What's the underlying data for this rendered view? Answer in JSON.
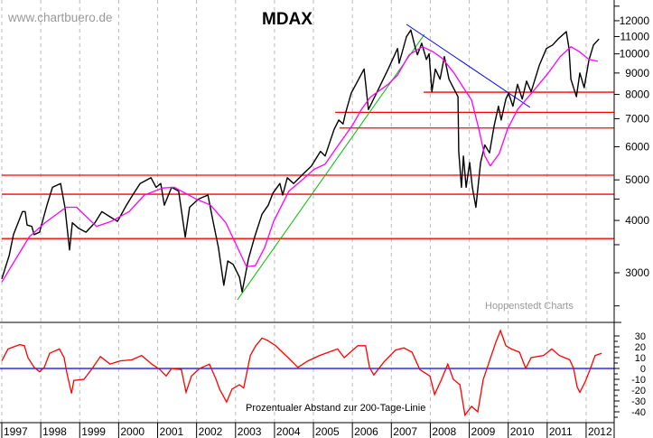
{
  "chart_data": [
    {
      "type": "line",
      "title": "MDAX",
      "watermark": "www.chartbuero.de",
      "source": "Hoppenstedt Charts",
      "y_scale": "log",
      "ylim": [
        2500,
        13000
      ],
      "xlim": [
        1997,
        2012.7
      ],
      "grid": "vertical dashed, yearly",
      "y_ticks": [
        12000,
        11000,
        10000,
        9000,
        8000,
        7000,
        6000,
        5000,
        4000,
        3000
      ],
      "x_ticks": [
        "1997",
        "1998",
        "1999",
        "2000",
        "2001",
        "2002",
        "2003",
        "2004",
        "2005",
        "2006",
        "2007",
        "2008",
        "2009",
        "2010",
        "2011",
        "2012"
      ],
      "colors": {
        "price": "#000000",
        "ma200": "#ff00ff",
        "support": "#ff0000",
        "uptrend": "#00c000",
        "downtrend": "#0000ff"
      },
      "series": [
        {
          "key": "price",
          "points": [
            [
              1997.0,
              2900
            ],
            [
              1997.19,
              3300
            ],
            [
              1997.3,
              3700
            ],
            [
              1997.53,
              4200
            ],
            [
              1997.6,
              4200
            ],
            [
              1997.65,
              3900
            ],
            [
              1997.77,
              3870
            ],
            [
              1997.83,
              3700
            ],
            [
              1997.97,
              3750
            ],
            [
              1998.16,
              4350
            ],
            [
              1998.3,
              4800
            ],
            [
              1998.51,
              4900
            ],
            [
              1998.62,
              4300
            ],
            [
              1998.74,
              3400
            ],
            [
              1998.81,
              3950
            ],
            [
              1998.97,
              3830
            ],
            [
              1999.16,
              3750
            ],
            [
              1999.39,
              3950
            ],
            [
              1999.57,
              4200
            ],
            [
              1999.78,
              4080
            ],
            [
              1999.97,
              3980
            ],
            [
              2000.2,
              4350
            ],
            [
              2000.36,
              4600
            ],
            [
              2000.55,
              4900
            ],
            [
              2000.83,
              5060
            ],
            [
              2000.96,
              4800
            ],
            [
              2001.08,
              4900
            ],
            [
              2001.17,
              4350
            ],
            [
              2001.36,
              4800
            ],
            [
              2001.54,
              4700
            ],
            [
              2001.71,
              3650
            ],
            [
              2001.82,
              4300
            ],
            [
              2002.05,
              4500
            ],
            [
              2002.29,
              4600
            ],
            [
              2002.43,
              3950
            ],
            [
              2002.56,
              3450
            ],
            [
              2002.7,
              2800
            ],
            [
              2002.8,
              3200
            ],
            [
              2002.94,
              3140
            ],
            [
              2003.1,
              2930
            ],
            [
              2003.17,
              2700
            ],
            [
              2003.33,
              3230
            ],
            [
              2003.49,
              3650
            ],
            [
              2003.68,
              4140
            ],
            [
              2003.84,
              4350
            ],
            [
              2003.96,
              4650
            ],
            [
              2004.14,
              4900
            ],
            [
              2004.21,
              4600
            ],
            [
              2004.33,
              5060
            ],
            [
              2004.49,
              4900
            ],
            [
              2004.72,
              5150
            ],
            [
              2004.95,
              5400
            ],
            [
              2005.18,
              5850
            ],
            [
              2005.3,
              5700
            ],
            [
              2005.53,
              6600
            ],
            [
              2005.65,
              6950
            ],
            [
              2005.76,
              6800
            ],
            [
              2005.83,
              7250
            ],
            [
              2005.97,
              8060
            ],
            [
              2006.3,
              9200
            ],
            [
              2006.41,
              7360
            ],
            [
              2006.62,
              8060
            ],
            [
              2006.92,
              9200
            ],
            [
              2007.16,
              10300
            ],
            [
              2007.2,
              9500
            ],
            [
              2007.39,
              11000
            ],
            [
              2007.5,
              11400
            ],
            [
              2007.62,
              10300
            ],
            [
              2007.67,
              9950
            ],
            [
              2007.78,
              10600
            ],
            [
              2007.9,
              9700
            ],
            [
              2007.97,
              10000
            ],
            [
              2008.04,
              8120
            ],
            [
              2008.13,
              9200
            ],
            [
              2008.25,
              8700
            ],
            [
              2008.36,
              9850
            ],
            [
              2008.48,
              8700
            ],
            [
              2008.59,
              8300
            ],
            [
              2008.71,
              7900
            ],
            [
              2008.73,
              5850
            ],
            [
              2008.8,
              4800
            ],
            [
              2008.85,
              5700
            ],
            [
              2008.92,
              4800
            ],
            [
              2009.01,
              5500
            ],
            [
              2009.08,
              4800
            ],
            [
              2009.17,
              4300
            ],
            [
              2009.29,
              5500
            ],
            [
              2009.4,
              6060
            ],
            [
              2009.52,
              5800
            ],
            [
              2009.64,
              6750
            ],
            [
              2009.75,
              7500
            ],
            [
              2009.82,
              6950
            ],
            [
              2009.94,
              7800
            ],
            [
              2010.01,
              8060
            ],
            [
              2010.12,
              7500
            ],
            [
              2010.24,
              8460
            ],
            [
              2010.36,
              7800
            ],
            [
              2010.47,
              8610
            ],
            [
              2010.59,
              8120
            ],
            [
              2010.8,
              9400
            ],
            [
              2010.98,
              10300
            ],
            [
              2011.14,
              10500
            ],
            [
              2011.28,
              10850
            ],
            [
              2011.49,
              11300
            ],
            [
              2011.56,
              10300
            ],
            [
              2011.61,
              8700
            ],
            [
              2011.75,
              7900
            ],
            [
              2011.84,
              9000
            ],
            [
              2011.95,
              8300
            ],
            [
              2012.07,
              9650
            ],
            [
              2012.19,
              10500
            ],
            [
              2012.33,
              10850
            ]
          ]
        },
        {
          "key": "ma200",
          "points": [
            [
              1997.0,
              2850
            ],
            [
              1997.7,
              3650
            ],
            [
              1998.11,
              3950
            ],
            [
              1998.65,
              4300
            ],
            [
              1998.92,
              4300
            ],
            [
              1999.43,
              3870
            ],
            [
              1999.81,
              3980
            ],
            [
              2000.27,
              4200
            ],
            [
              2000.66,
              4600
            ],
            [
              2001.13,
              4780
            ],
            [
              2001.43,
              4800
            ],
            [
              2001.99,
              4500
            ],
            [
              2002.36,
              4350
            ],
            [
              2002.75,
              3950
            ],
            [
              2003.05,
              3450
            ],
            [
              2003.28,
              3100
            ],
            [
              2003.51,
              3120
            ],
            [
              2003.75,
              3450
            ],
            [
              2003.98,
              3980
            ],
            [
              2004.37,
              4700
            ],
            [
              2004.67,
              4960
            ],
            [
              2005.02,
              5300
            ],
            [
              2005.3,
              5450
            ],
            [
              2005.6,
              5980
            ],
            [
              2006.0,
              6750
            ],
            [
              2006.23,
              7360
            ],
            [
              2006.46,
              7880
            ],
            [
              2006.92,
              8460
            ],
            [
              2007.16,
              8900
            ],
            [
              2007.46,
              9950
            ],
            [
              2007.8,
              10400
            ],
            [
              2008.08,
              10100
            ],
            [
              2008.31,
              9750
            ],
            [
              2008.61,
              9000
            ],
            [
              2008.85,
              8300
            ],
            [
              2009.06,
              7760
            ],
            [
              2009.24,
              6650
            ],
            [
              2009.4,
              5700
            ],
            [
              2009.54,
              5400
            ],
            [
              2009.77,
              5780
            ],
            [
              2009.98,
              6600
            ],
            [
              2010.24,
              7360
            ],
            [
              2010.63,
              8120
            ],
            [
              2011.03,
              9000
            ],
            [
              2011.33,
              9840
            ],
            [
              2011.61,
              10400
            ],
            [
              2011.84,
              10100
            ],
            [
              2012.07,
              9700
            ],
            [
              2012.3,
              9600
            ]
          ]
        }
      ],
      "trendlines": [
        {
          "key": "uptrend",
          "from": [
            2003.05,
            2585
          ],
          "to": [
            2007.85,
            11130
          ]
        },
        {
          "key": "downtrend",
          "from": [
            2007.39,
            11760
          ],
          "to": [
            2010.56,
            7450
          ]
        }
      ],
      "horizontal_lines": [
        {
          "value": 8100,
          "from": 2007.83
        },
        {
          "value": 7250,
          "from": 2005.56
        },
        {
          "value": 6650,
          "from": 2005.67
        },
        {
          "value": 5130,
          "from": 1997.0
        },
        {
          "value": 4620,
          "from": 1997.0
        },
        {
          "value": 3620,
          "from": 1997.0
        }
      ]
    },
    {
      "type": "line",
      "annotation": "Prozentualer Abstand zur 200-Tage-Linie",
      "ylim": [
        -45,
        36
      ],
      "y_ticks": [
        30,
        20,
        10,
        0,
        -10,
        -20,
        -30,
        -40
      ],
      "zero_line_color": "#0000ff",
      "color": "#ff0000",
      "points": [
        [
          1997.0,
          7
        ],
        [
          1997.16,
          18
        ],
        [
          1997.46,
          22
        ],
        [
          1997.58,
          21
        ],
        [
          1997.67,
          10
        ],
        [
          1997.83,
          1
        ],
        [
          1997.97,
          -3
        ],
        [
          1998.09,
          1
        ],
        [
          1998.23,
          14
        ],
        [
          1998.48,
          18
        ],
        [
          1998.6,
          10
        ],
        [
          1998.67,
          -4
        ],
        [
          1998.79,
          -23
        ],
        [
          1998.85,
          -11
        ],
        [
          1999.11,
          -10
        ],
        [
          1999.32,
          0
        ],
        [
          1999.53,
          11
        ],
        [
          1999.78,
          4
        ],
        [
          2000.04,
          7
        ],
        [
          2000.34,
          8
        ],
        [
          2000.59,
          12
        ],
        [
          2000.85,
          4
        ],
        [
          2001.06,
          -1
        ],
        [
          2001.22,
          -7
        ],
        [
          2001.36,
          0
        ],
        [
          2001.61,
          -1
        ],
        [
          2001.73,
          -22
        ],
        [
          2001.87,
          -7
        ],
        [
          2002.08,
          0
        ],
        [
          2002.33,
          4
        ],
        [
          2002.5,
          -10
        ],
        [
          2002.59,
          -19
        ],
        [
          2002.77,
          -31
        ],
        [
          2002.91,
          -19
        ],
        [
          2003.1,
          -15
        ],
        [
          2003.21,
          -18
        ],
        [
          2003.38,
          12
        ],
        [
          2003.52,
          21
        ],
        [
          2003.68,
          28
        ],
        [
          2003.82,
          26
        ],
        [
          2004.03,
          21
        ],
        [
          2004.35,
          10
        ],
        [
          2004.6,
          1
        ],
        [
          2004.86,
          7
        ],
        [
          2005.16,
          12
        ],
        [
          2005.62,
          18
        ],
        [
          2005.79,
          10
        ],
        [
          2006.14,
          21
        ],
        [
          2006.34,
          21
        ],
        [
          2006.44,
          1
        ],
        [
          2006.55,
          -6
        ],
        [
          2006.81,
          6
        ],
        [
          2007.11,
          17
        ],
        [
          2007.32,
          19
        ],
        [
          2007.53,
          15
        ],
        [
          2007.73,
          -1
        ],
        [
          2007.99,
          -7
        ],
        [
          2008.11,
          -24
        ],
        [
          2008.29,
          -10
        ],
        [
          2008.45,
          4
        ],
        [
          2008.59,
          -10
        ],
        [
          2008.76,
          -15
        ],
        [
          2008.89,
          -43
        ],
        [
          2009.06,
          -35
        ],
        [
          2009.22,
          -40
        ],
        [
          2009.36,
          -10
        ],
        [
          2009.52,
          7
        ],
        [
          2009.68,
          24
        ],
        [
          2009.8,
          35
        ],
        [
          2009.94,
          21
        ],
        [
          2010.08,
          18
        ],
        [
          2010.29,
          15
        ],
        [
          2010.45,
          0
        ],
        [
          2010.59,
          10
        ],
        [
          2010.91,
          12
        ],
        [
          2011.12,
          18
        ],
        [
          2011.31,
          12
        ],
        [
          2011.58,
          8
        ],
        [
          2011.68,
          0
        ],
        [
          2011.77,
          -17
        ],
        [
          2011.84,
          -22
        ],
        [
          2011.98,
          -12
        ],
        [
          2012.1,
          -1
        ],
        [
          2012.23,
          12
        ],
        [
          2012.4,
          14
        ]
      ]
    }
  ]
}
